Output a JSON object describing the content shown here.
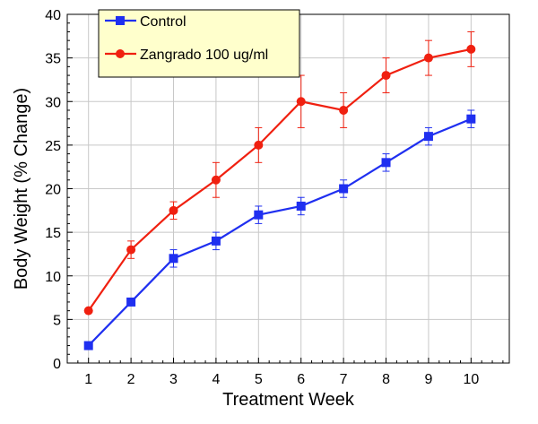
{
  "chart_data": {
    "type": "line",
    "title": "",
    "xlabel": "Treatment Week",
    "ylabel": "Body Weight  (% Change)",
    "x": [
      1,
      2,
      3,
      4,
      5,
      6,
      7,
      8,
      9,
      10
    ],
    "xlim": [
      0.5,
      10.9
    ],
    "ylim": [
      0,
      40
    ],
    "yticks": [
      0,
      5,
      10,
      15,
      20,
      25,
      30,
      35,
      40
    ],
    "xticks": [
      1,
      2,
      3,
      4,
      5,
      6,
      7,
      8,
      9,
      10
    ],
    "grid": true,
    "legend_position": "top-left",
    "series": [
      {
        "name": "Control",
        "color": "#1f2ff0",
        "marker": "square",
        "values": [
          2,
          7,
          12,
          14,
          17,
          18,
          20,
          23,
          26,
          28
        ],
        "errors": [
          0,
          0.3,
          1,
          1,
          1,
          1,
          1,
          1,
          1,
          1
        ]
      },
      {
        "name": "Zangrado 100 ug/ml",
        "color": "#f02010",
        "marker": "circle",
        "values": [
          6,
          13,
          17.5,
          21,
          25,
          30,
          29,
          33,
          35,
          36
        ],
        "errors": [
          0,
          1,
          1,
          2,
          2,
          3,
          2,
          2,
          2,
          2
        ]
      }
    ]
  }
}
